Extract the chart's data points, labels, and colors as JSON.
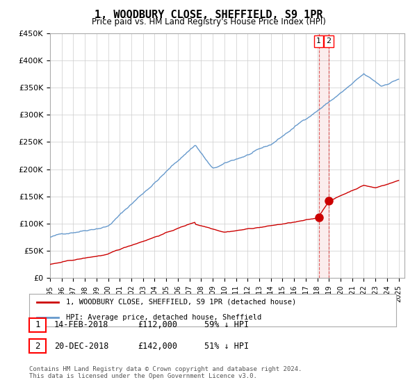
{
  "title": "1, WOODBURY CLOSE, SHEFFIELD, S9 1PR",
  "subtitle": "Price paid vs. HM Land Registry's House Price Index (HPI)",
  "legend_line1": "1, WOODBURY CLOSE, SHEFFIELD, S9 1PR (detached house)",
  "legend_line2": "HPI: Average price, detached house, Sheffield",
  "annotation1_label": "1",
  "annotation1_date": "14-FEB-2018",
  "annotation1_price": "£112,000",
  "annotation1_pct": "59% ↓ HPI",
  "annotation2_label": "2",
  "annotation2_date": "20-DEC-2018",
  "annotation2_price": "£142,000",
  "annotation2_pct": "51% ↓ HPI",
  "footer": "Contains HM Land Registry data © Crown copyright and database right 2024.\nThis data is licensed under the Open Government Licence v3.0.",
  "red_color": "#cc0000",
  "blue_color": "#6699cc",
  "bg_color": "#ffffff",
  "grid_color": "#cccccc",
  "ylim": [
    0,
    450000
  ],
  "yticks": [
    0,
    50000,
    100000,
    150000,
    200000,
    250000,
    300000,
    350000,
    400000,
    450000
  ],
  "point1_year": 2018.12,
  "point1_red_val": 112000,
  "point2_year": 2018.97,
  "point2_red_val": 142000
}
